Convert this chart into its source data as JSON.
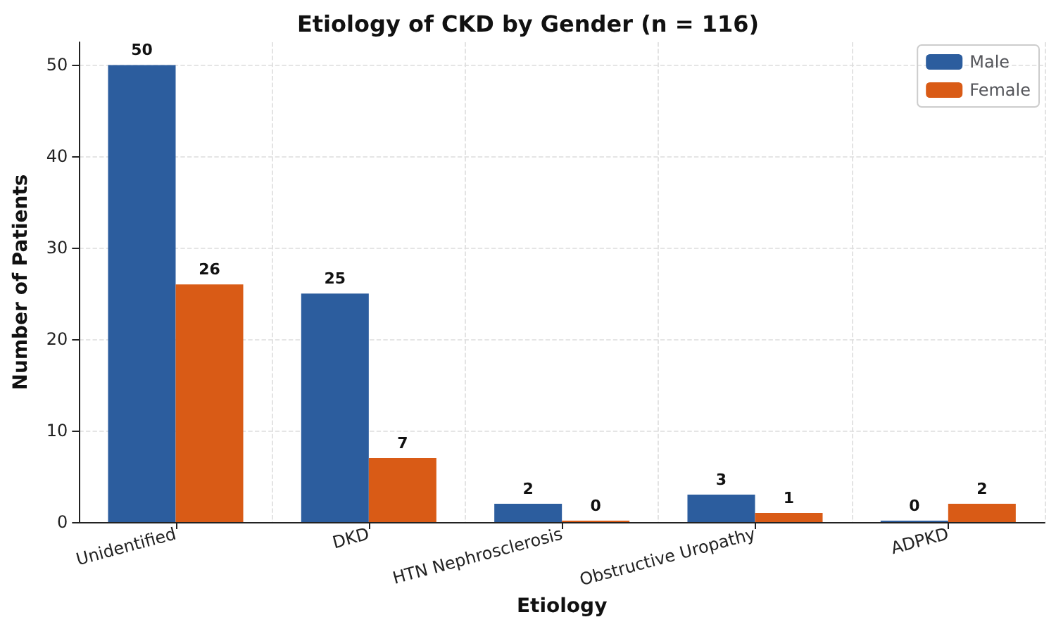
{
  "chart_data": {
    "type": "bar",
    "title": "Etiology of CKD by Gender (n = 116)",
    "xlabel": "Etiology",
    "ylabel": "Number of Patients",
    "categories": [
      "Unidentified",
      "DKD",
      "HTN Nephrosclerosis",
      "Obstructive Uropathy",
      "ADPKD"
    ],
    "series": [
      {
        "name": "Male",
        "color": "#2c5d9e",
        "values": [
          50,
          25,
          2,
          3,
          0
        ]
      },
      {
        "name": "Female",
        "color": "#d95b16",
        "values": [
          26,
          7,
          0,
          1,
          2
        ]
      }
    ],
    "ylim": [
      0,
      52.5
    ],
    "yticks": [
      0,
      10,
      20,
      30,
      40,
      50
    ],
    "grid": true,
    "legend": "top right",
    "data_labels": true
  }
}
